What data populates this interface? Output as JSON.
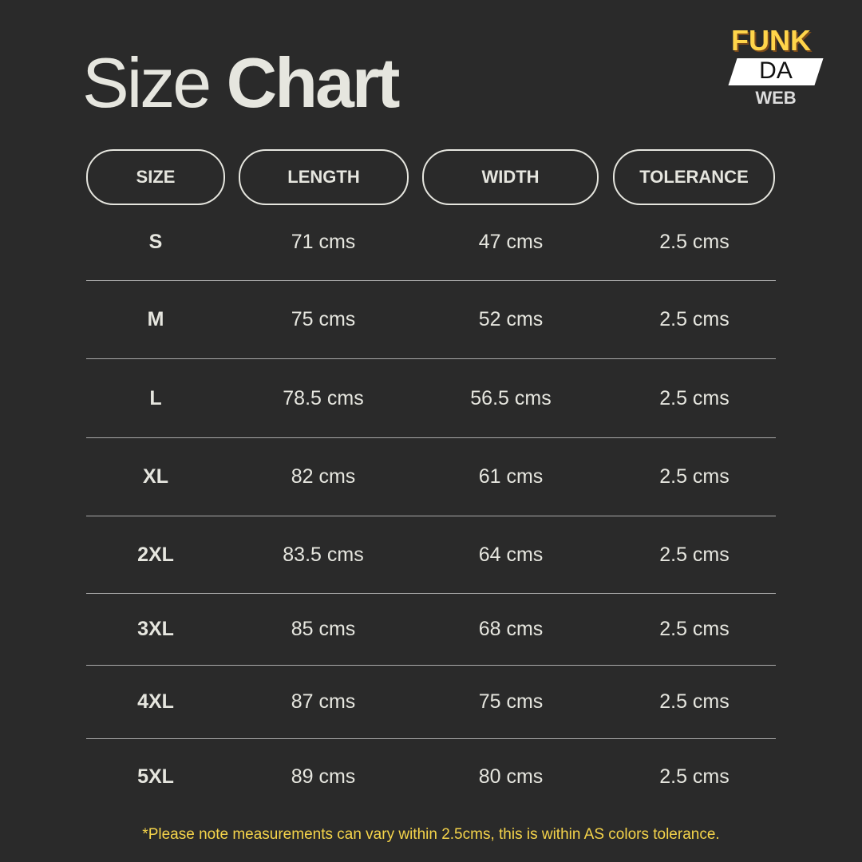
{
  "title": {
    "light": "Size",
    "bold": "Chart"
  },
  "logo": {
    "line1": "FUNK",
    "line2": "DA",
    "line3": "WEB"
  },
  "colors": {
    "background": "#2a2a2a",
    "text": "#e6e6df",
    "note": "#f5d44a",
    "logo_yellow": "#ffd54a"
  },
  "table": {
    "headers": [
      "SIZE",
      "LENGTH",
      "WIDTH",
      "TOLERANCE"
    ],
    "rows": [
      [
        "S",
        "71 cms",
        "47 cms",
        "2.5 cms"
      ],
      [
        "M",
        "75 cms",
        "52 cms",
        "2.5 cms"
      ],
      [
        "L",
        "78.5 cms",
        "56.5 cms",
        "2.5 cms"
      ],
      [
        "XL",
        "82 cms",
        "61 cms",
        "2.5 cms"
      ],
      [
        "2XL",
        "83.5 cms",
        "64 cms",
        "2.5 cms"
      ],
      [
        "3XL",
        "85 cms",
        "68 cms",
        "2.5 cms"
      ],
      [
        "4XL",
        "87 cms",
        "75 cms",
        "2.5 cms"
      ],
      [
        "5XL",
        "89 cms",
        "80 cms",
        "2.5 cms"
      ]
    ]
  },
  "note": "*Please note measurements can vary within 2.5cms, this is within AS colors tolerance."
}
